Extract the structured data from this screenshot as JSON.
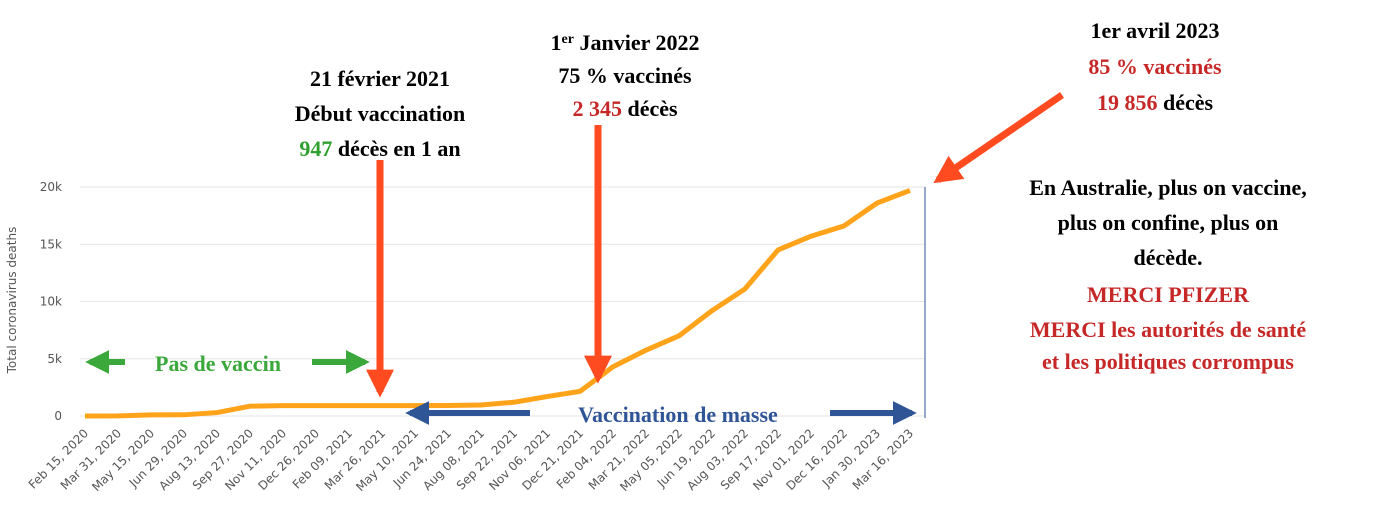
{
  "chart_data": {
    "type": "line",
    "y_label": "Total coronavirus deaths",
    "categories": [
      "Feb 15, 2020",
      "Mar 31, 2020",
      "May 15, 2020",
      "Jun 29, 2020",
      "Aug 13, 2020",
      "Sep 27, 2020",
      "Nov 11, 2020",
      "Dec 26, 2020",
      "Feb 09, 2021",
      "Mar 26, 2021",
      "May 10, 2021",
      "Jun 24, 2021",
      "Aug 08, 2021",
      "Sep 22, 2021",
      "Nov 06, 2021",
      "Dec 21, 2021",
      "Feb 04, 2022",
      "Mar 21, 2022",
      "May 05, 2022",
      "Jun 19, 2022",
      "Aug 03, 2022",
      "Sep 17, 2022",
      "Nov 01, 2022",
      "Dec 16, 2022",
      "Jan 30, 2023",
      "Mar 16, 2023"
    ],
    "series": [
      {
        "color": "#ffa31a",
        "values": [
          0,
          10,
          100,
          104,
          300,
          860,
          907,
          909,
          909,
          910,
          910,
          918,
          960,
          1200,
          1700,
          2150,
          4300,
          5750,
          7000,
          9200,
          11100,
          14500,
          15700,
          16600,
          18600,
          19700
        ]
      }
    ],
    "ylim": [
      0,
      20000
    ],
    "yticks": [
      0,
      {
        "value": 5000,
        "label": "5k"
      },
      {
        "value": 10000,
        "label": "10k"
      },
      {
        "value": 15000,
        "label": "15k"
      },
      {
        "value": 20000,
        "label": "20k"
      }
    ],
    "grid": true,
    "annotations": [
      {
        "lines": [
          [
            {
              "text": "21 février 2021",
              "color": "#000000"
            }
          ],
          [
            {
              "text": "Début vaccination",
              "color": "#000000"
            }
          ],
          [
            {
              "text": "947",
              "color": "#2ea02e"
            },
            {
              "text": " décès en 1 an",
              "color": "#000000"
            }
          ]
        ]
      },
      {
        "lines": [
          [
            {
              "text": "1",
              "color": "#000000"
            },
            {
              "text": "er",
              "color": "#000000",
              "sup": true
            },
            {
              "text": " Janvier 2022",
              "color": "#000000"
            }
          ],
          [
            {
              "text": "75 % vaccinés",
              "color": "#000000"
            }
          ],
          [
            {
              "text": "2 345",
              "color": "#c62828"
            },
            {
              "text": " décès",
              "color": "#000000"
            }
          ]
        ]
      },
      {
        "lines": [
          [
            {
              "text": "1er avril 2023",
              "color": "#000000"
            }
          ],
          [
            {
              "text": "85 % vaccinés",
              "color": "#c62828"
            }
          ],
          [
            {
              "text": "19 856",
              "color": "#c62828"
            },
            {
              "text": " décès",
              "color": "#000000"
            }
          ]
        ]
      },
      {
        "lines": [
          [
            {
              "text": "En Australie, plus on vaccine,",
              "color": "#000000"
            }
          ],
          [
            {
              "text": "plus on confine, plus on",
              "color": "#000000"
            }
          ],
          [
            {
              "text": "décède.",
              "color": "#000000"
            }
          ],
          [
            {
              "text": "MERCI PFIZER",
              "color": "#c62828"
            }
          ],
          [
            {
              "text": "MERCI les autorités de santé",
              "color": "#c62828"
            }
          ],
          [
            {
              "text": "et les politiques corrompus",
              "color": "#c62828"
            }
          ]
        ]
      },
      {
        "lines": [
          [
            {
              "text": "Pas de vaccin",
              "color": "#3aa83a"
            }
          ]
        ]
      },
      {
        "lines": [
          [
            {
              "text": "Vaccination de masse",
              "color": "#2f5597"
            }
          ]
        ]
      }
    ]
  }
}
